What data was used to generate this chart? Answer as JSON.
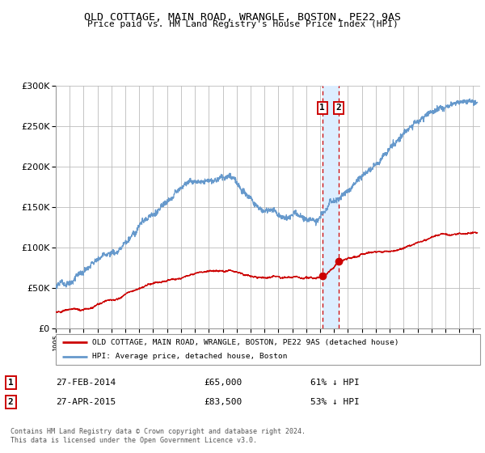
{
  "title": "OLD COTTAGE, MAIN ROAD, WRANGLE, BOSTON, PE22 9AS",
  "subtitle": "Price paid vs. HM Land Registry's House Price Index (HPI)",
  "legend_label_red": "OLD COTTAGE, MAIN ROAD, WRANGLE, BOSTON, PE22 9AS (detached house)",
  "legend_label_blue": "HPI: Average price, detached house, Boston",
  "transaction1_date": "27-FEB-2014",
  "transaction1_price": 65000,
  "transaction1_pct": "61% ↓ HPI",
  "transaction2_date": "27-APR-2015",
  "transaction2_price": 83500,
  "transaction2_pct": "53% ↓ HPI",
  "footer": "Contains HM Land Registry data © Crown copyright and database right 2024.\nThis data is licensed under the Open Government Licence v3.0.",
  "ylim": [
    0,
    300000
  ],
  "xlim_start": 1995.0,
  "xlim_end": 2025.5,
  "transaction1_x": 2014.16,
  "transaction2_x": 2015.33,
  "red_color": "#cc0000",
  "blue_color": "#6699cc",
  "bg_color": "#ffffff",
  "grid_color": "#bbbbbb",
  "highlight_color": "#ddeeff"
}
